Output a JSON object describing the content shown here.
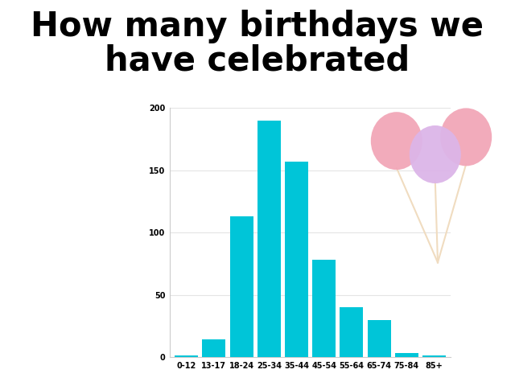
{
  "chart_data": {
    "type": "bar",
    "title": "How many birthdays we have celebrated",
    "categories": [
      "0-12",
      "13-17",
      "18-24",
      "25-34",
      "35-44",
      "45-54",
      "55-64",
      "65-74",
      "75-84",
      "85+"
    ],
    "values": [
      1,
      14,
      113,
      190,
      157,
      78,
      40,
      30,
      3,
      1
    ],
    "color": "#00c5d8",
    "ylim": [
      0,
      200
    ],
    "yticks": [
      0,
      50,
      100,
      150,
      200
    ],
    "grid": true
  }
}
